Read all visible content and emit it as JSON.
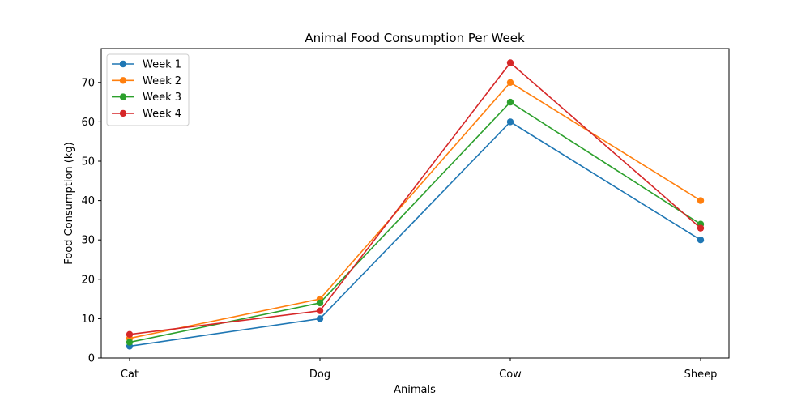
{
  "chart_data": {
    "type": "line",
    "title": "Animal Food Consumption Per Week",
    "xlabel": "Animals",
    "ylabel": "Food Consumption (kg)",
    "categories": [
      "Cat",
      "Dog",
      "Cow",
      "Sheep"
    ],
    "ylim": [
      0,
      78.6
    ],
    "yticks": [
      0,
      10,
      20,
      30,
      40,
      50,
      60,
      70
    ],
    "grid": false,
    "legend_position": "upper-left",
    "series": [
      {
        "name": "Week 1",
        "color": "#1f77b4",
        "values": [
          3,
          10,
          60,
          30
        ]
      },
      {
        "name": "Week 2",
        "color": "#ff7f0e",
        "values": [
          5,
          15,
          70,
          40
        ]
      },
      {
        "name": "Week 3",
        "color": "#2ca02c",
        "values": [
          4,
          14,
          65,
          34
        ]
      },
      {
        "name": "Week 4",
        "color": "#d62728",
        "values": [
          6,
          12,
          75,
          33
        ]
      }
    ]
  }
}
